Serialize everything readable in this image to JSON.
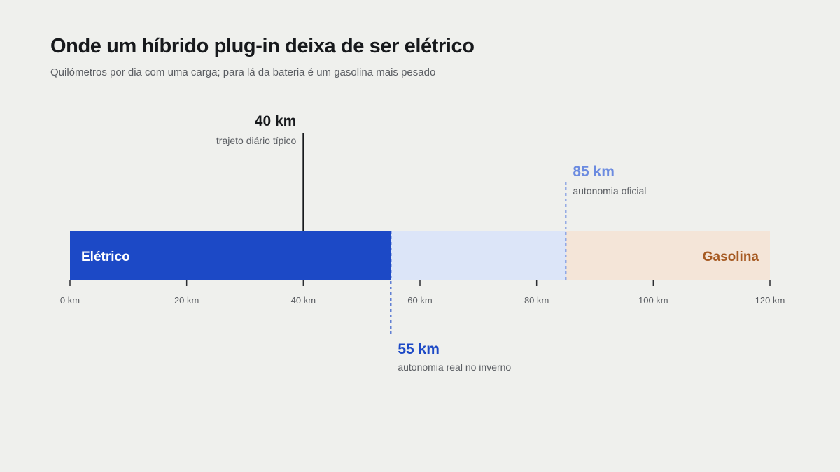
{
  "title": "Onde um híbrido plug-in deixa de ser elétrico",
  "subtitle": "Quilómetros por dia com uma carga; para lá da bateria é um gasolina mais pesado",
  "chart_data": {
    "type": "bar",
    "orientation": "horizontal",
    "xlim": [
      0,
      120
    ],
    "xticks": [
      0,
      20,
      40,
      60,
      80,
      100,
      120
    ],
    "xtick_suffix": " km",
    "grid": false,
    "segments": [
      {
        "key": "eletrico",
        "label": "Elétrico",
        "from": 0,
        "to": 55,
        "color": "#1c49c6"
      },
      {
        "key": "oficial",
        "label": "",
        "from": 55,
        "to": 85,
        "color": "#dce5f8"
      },
      {
        "key": "gasolina",
        "label": "Gasolina",
        "from": 85,
        "to": 120,
        "color": "#f4e5d8"
      }
    ],
    "markers": [
      {
        "key": "trajeto",
        "value": 40,
        "value_label": "40 km",
        "text": "trajeto diário típico",
        "position": "above-left",
        "style": "solid",
        "color": "#17191c"
      },
      {
        "key": "oficial",
        "value": 85,
        "value_label": "85 km",
        "text": "autonomia oficial",
        "position": "above-right",
        "style": "dashed",
        "color": "#6b8be0"
      },
      {
        "key": "real",
        "value": 55,
        "value_label": "55 km",
        "text": "autonomia real no inverno",
        "position": "below-right",
        "style": "dashed",
        "color": "#1c49c6"
      }
    ],
    "colors": {
      "eletrico_text": "#ffffff",
      "gasolina_text": "#a65a22",
      "axis": "#2a2c30",
      "tick_text": "#5a5d62",
      "note_text": "#5a5d62"
    }
  }
}
